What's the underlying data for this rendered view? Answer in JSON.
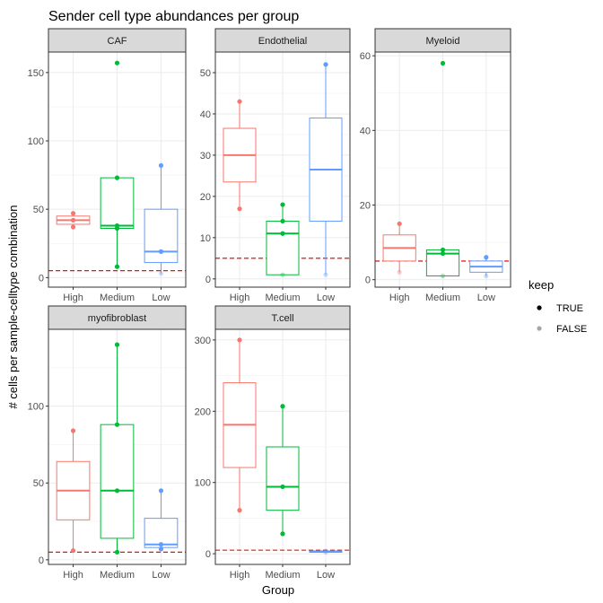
{
  "chart_data": {
    "type": "box",
    "title": "Sender cell type abundances per group",
    "xlabel": "Group",
    "ylabel": "# cells per sample-celltype combination",
    "groups": [
      "High",
      "Medium",
      "Low"
    ],
    "group_colors": {
      "High": "#F8766D",
      "Medium": "#00BA38",
      "Low": "#619CFF"
    },
    "threshold": 5,
    "threshold_color": "#CC0000",
    "legend": {
      "title": "keep",
      "entries": [
        {
          "label": "TRUE",
          "alpha": 1
        },
        {
          "label": "FALSE",
          "alpha": 0.35
        }
      ]
    },
    "panels": [
      {
        "name": "CAF",
        "ylim": [
          -7,
          165
        ],
        "yticks": [
          0,
          50,
          100,
          150
        ],
        "boxes": [
          {
            "group": "High",
            "q1": 39,
            "median": 42,
            "q3": 45,
            "whisker_low": 37,
            "whisker_high": 47,
            "points": [
              {
                "y": 47,
                "keep": true
              },
              {
                "y": 42,
                "keep": true
              },
              {
                "y": 37,
                "keep": true
              }
            ]
          },
          {
            "group": "Medium",
            "q1": 36,
            "median": 38,
            "q3": 73,
            "whisker_low": 8,
            "whisker_high": 73,
            "points": [
              {
                "y": 157,
                "keep": true
              },
              {
                "y": 73,
                "keep": true
              },
              {
                "y": 38,
                "keep": true
              },
              {
                "y": 36,
                "keep": true
              },
              {
                "y": 8,
                "keep": true
              }
            ]
          },
          {
            "group": "Low",
            "q1": 11,
            "median": 19,
            "q3": 50,
            "whisker_low": 3,
            "whisker_high": 82,
            "points": [
              {
                "y": 82,
                "keep": true
              },
              {
                "y": 19,
                "keep": true
              },
              {
                "y": 3,
                "keep": false
              }
            ]
          }
        ]
      },
      {
        "name": "Endothelial",
        "ylim": [
          -2,
          55
        ],
        "yticks": [
          0,
          10,
          20,
          30,
          40,
          50
        ],
        "boxes": [
          {
            "group": "High",
            "q1": 23.5,
            "median": 30,
            "q3": 36.5,
            "whisker_low": 17,
            "whisker_high": 43,
            "points": [
              {
                "y": 43,
                "keep": true
              },
              {
                "y": 17,
                "keep": true
              }
            ]
          },
          {
            "group": "Medium",
            "q1": 1,
            "median": 11,
            "q3": 14,
            "whisker_low": 1,
            "whisker_high": 18,
            "points": [
              {
                "y": 18,
                "keep": true
              },
              {
                "y": 14,
                "keep": true
              },
              {
                "y": 11,
                "keep": true
              },
              {
                "y": 1,
                "keep": false
              }
            ]
          },
          {
            "group": "Low",
            "q1": 14,
            "median": 26.5,
            "q3": 39,
            "whisker_low": 1,
            "whisker_high": 52,
            "points": [
              {
                "y": 52,
                "keep": true
              },
              {
                "y": 1,
                "keep": false
              }
            ]
          }
        ]
      },
      {
        "name": "Myeloid",
        "ylim": [
          -2,
          61
        ],
        "yticks": [
          0,
          20,
          40,
          60
        ],
        "boxes": [
          {
            "group": "High",
            "q1": 5,
            "median": 8.5,
            "q3": 12,
            "whisker_low": 2,
            "whisker_high": 15,
            "points": [
              {
                "y": 15,
                "keep": true
              },
              {
                "y": 2,
                "keep": false
              }
            ]
          },
          {
            "group": "Medium",
            "q1": 1,
            "median": 7,
            "q3": 8,
            "whisker_low": 1,
            "whisker_high": 8,
            "points": [
              {
                "y": 58,
                "keep": true
              },
              {
                "y": 8,
                "keep": true
              },
              {
                "y": 7,
                "keep": true
              },
              {
                "y": 1,
                "keep": false
              }
            ]
          },
          {
            "group": "Low",
            "q1": 2,
            "median": 3.5,
            "q3": 5,
            "whisker_low": 1,
            "whisker_high": 6,
            "points": [
              {
                "y": 6,
                "keep": true
              },
              {
                "y": 1,
                "keep": false
              }
            ]
          }
        ]
      },
      {
        "name": "myofibroblast",
        "ylim": [
          -3,
          150
        ],
        "yticks": [
          0,
          50,
          100
        ],
        "boxes": [
          {
            "group": "High",
            "q1": 26,
            "median": 45,
            "q3": 64,
            "whisker_low": 6,
            "whisker_high": 84,
            "points": [
              {
                "y": 84,
                "keep": true
              },
              {
                "y": 6,
                "keep": true
              }
            ]
          },
          {
            "group": "Medium",
            "q1": 14,
            "median": 45,
            "q3": 88,
            "whisker_low": 5,
            "whisker_high": 140,
            "points": [
              {
                "y": 140,
                "keep": true
              },
              {
                "y": 88,
                "keep": true
              },
              {
                "y": 45,
                "keep": true
              },
              {
                "y": 5,
                "keep": true
              }
            ]
          },
          {
            "group": "Low",
            "q1": 8,
            "median": 10,
            "q3": 27,
            "whisker_low": 7,
            "whisker_high": 45,
            "points": [
              {
                "y": 45,
                "keep": true
              },
              {
                "y": 10,
                "keep": true
              },
              {
                "y": 7,
                "keep": true
              }
            ]
          }
        ]
      },
      {
        "name": "T.cell",
        "ylim": [
          -15,
          315
        ],
        "yticks": [
          0,
          100,
          200,
          300
        ],
        "boxes": [
          {
            "group": "High",
            "q1": 121,
            "median": 181,
            "q3": 240,
            "whisker_low": 61,
            "whisker_high": 300,
            "points": [
              {
                "y": 300,
                "keep": true
              },
              {
                "y": 61,
                "keep": true
              }
            ]
          },
          {
            "group": "Medium",
            "q1": 61,
            "median": 94,
            "q3": 150,
            "whisker_low": 28,
            "whisker_high": 207,
            "points": [
              {
                "y": 207,
                "keep": true
              },
              {
                "y": 94,
                "keep": true
              },
              {
                "y": 28,
                "keep": true
              }
            ]
          },
          {
            "group": "Low",
            "q1": 2,
            "median": 3,
            "q3": 4,
            "whisker_low": 2,
            "whisker_high": 4,
            "points": [
              {
                "y": 4,
                "keep": false
              },
              {
                "y": 2,
                "keep": false
              }
            ]
          }
        ]
      }
    ]
  }
}
